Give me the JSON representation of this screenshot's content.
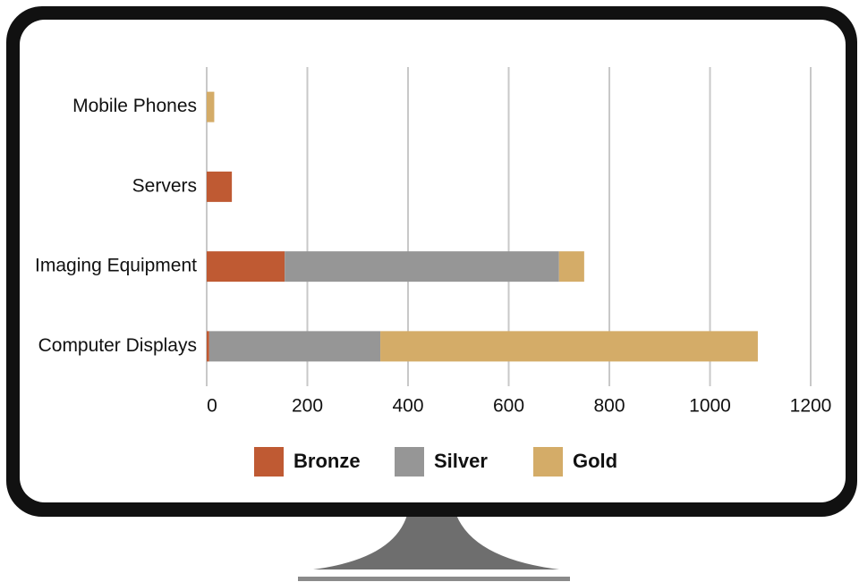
{
  "chart_data": {
    "type": "stacked-bar-horizontal",
    "categories": [
      "Computer Displays",
      "Imaging Equipment",
      "Servers",
      "Mobile Phones"
    ],
    "series": [
      {
        "name": "Bronze",
        "color": "#bf5a33",
        "values": [
          5,
          155,
          50,
          0
        ]
      },
      {
        "name": "Silver",
        "color": "#969696",
        "values": [
          340,
          545,
          0,
          0
        ]
      },
      {
        "name": "Gold",
        "color": "#d4ac68",
        "values": [
          750,
          50,
          0,
          15
        ]
      }
    ],
    "xlim": [
      0,
      1200
    ],
    "xticks": [
      0,
      200,
      400,
      600,
      800,
      1000,
      1200
    ],
    "grid": true
  }
}
